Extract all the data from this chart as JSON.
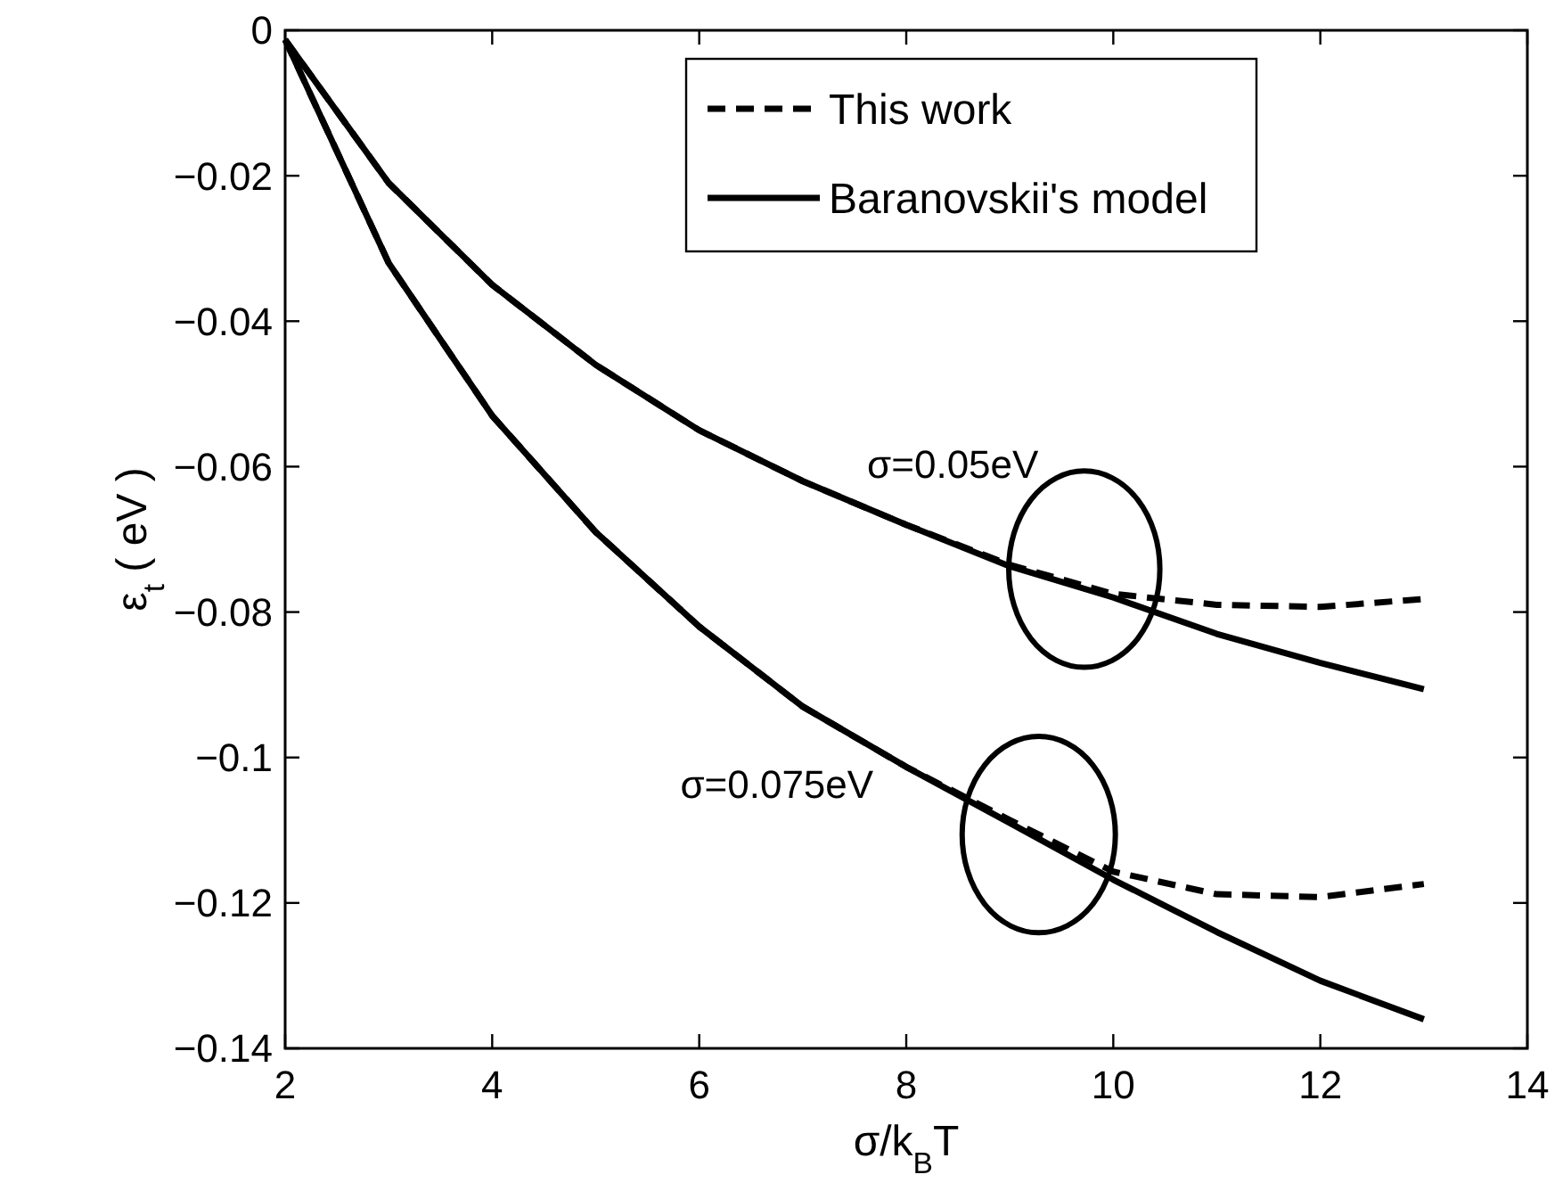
{
  "chart_data": {
    "type": "line",
    "xlabel": "σ/k$_{B}$T",
    "ylabel": "ε$_{t}$ ( eV )",
    "xlim": [
      2,
      14
    ],
    "xticks": [
      2,
      4,
      6,
      8,
      10,
      12,
      14
    ],
    "ylim": [
      -0.14,
      0
    ],
    "yticks": [
      {
        "value": -0.14,
        "label": "−0.14"
      },
      {
        "value": -0.12,
        "label": "−0.12"
      },
      {
        "value": -0.1,
        "label": "−0.1"
      },
      {
        "value": -0.08,
        "label": "−0.08"
      },
      {
        "value": -0.06,
        "label": "−0.06"
      },
      {
        "value": -0.04,
        "label": "−0.04"
      },
      {
        "value": -0.02,
        "label": "−0.02"
      },
      {
        "value": 0,
        "label": "0"
      }
    ],
    "grid": false,
    "legend": "top right",
    "marker": "none",
    "annotations": [
      "σ=0.05eV",
      "σ=0.075eV"
    ],
    "x": [
      2,
      3,
      4,
      5,
      6,
      7,
      8,
      9,
      10,
      11,
      12,
      13
    ],
    "series": [
      {
        "name": "This work",
        "color": "#000000",
        "line_style": "dashed",
        "values": [
          -0.0013,
          -0.021,
          -0.035,
          -0.046,
          -0.055,
          -0.062,
          -0.068,
          -0.0735,
          -0.0775,
          -0.079,
          -0.0793,
          -0.0782
        ]
      },
      {
        "name": "Baranovskii's model",
        "color": "#000000",
        "line_style": "solid",
        "values": [
          -0.0013,
          -0.021,
          -0.035,
          -0.046,
          -0.055,
          -0.062,
          -0.068,
          -0.0737,
          -0.078,
          -0.083,
          -0.087,
          -0.0906
        ]
      },
      {
        "color": "#000000",
        "line_style": "dashed",
        "values": [
          -0.0013,
          -0.032,
          -0.053,
          -0.069,
          -0.082,
          -0.093,
          -0.1013,
          -0.1086,
          -0.1157,
          -0.1188,
          -0.1192,
          -0.1174
        ]
      },
      {
        "color": "#000000",
        "line_style": "solid",
        "values": [
          -0.0013,
          -0.032,
          -0.053,
          -0.069,
          -0.082,
          -0.093,
          -0.1013,
          -0.109,
          -0.1168,
          -0.124,
          -0.1307,
          -0.136
        ]
      }
    ]
  }
}
